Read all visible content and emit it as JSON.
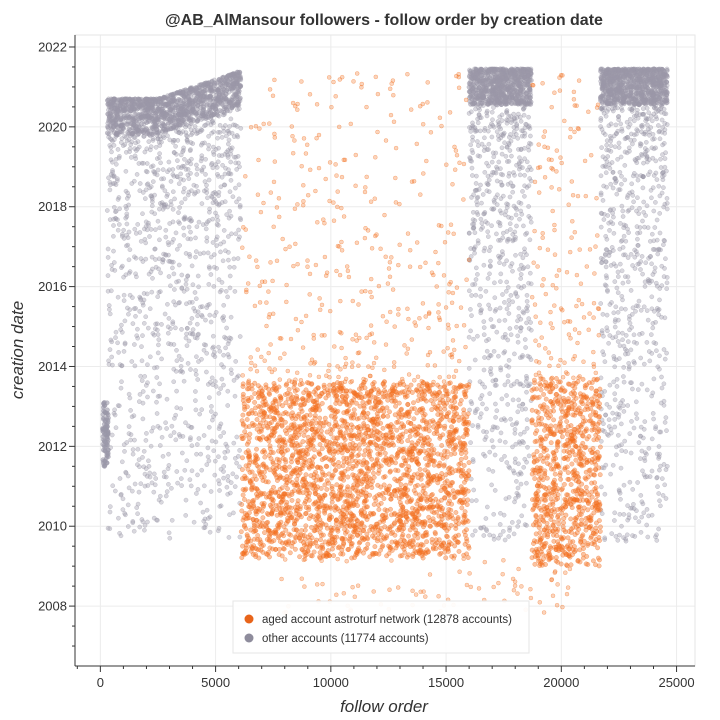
{
  "chart_data": {
    "type": "scatter",
    "title": "@AB_AlMansour followers - follow order by creation date",
    "xlabel": "follow order",
    "ylabel": "creation date",
    "xlim": [
      -1100,
      25800
    ],
    "ylim": [
      2006.5,
      2022.3
    ],
    "x_ticks": [
      0,
      5000,
      10000,
      15000,
      20000,
      25000
    ],
    "x_tick_labels": [
      "0",
      "5000",
      "10000",
      "15000",
      "20000",
      "25000"
    ],
    "y_ticks": [
      2008,
      2010,
      2012,
      2014,
      2016,
      2018,
      2020,
      2022
    ],
    "y_tick_labels": [
      "2008",
      "2010",
      "2012",
      "2014",
      "2016",
      "2018",
      "2020",
      "2022"
    ],
    "grid": true,
    "legend_position": "bottom-center",
    "series": [
      {
        "name": "aged account astroturf network (12878 accounts)",
        "color": "#f37121",
        "count": 12878,
        "clusters": [
          {
            "x_range": [
              6100,
              16000
            ],
            "y_range": [
              2009.2,
              2013.6
            ]
          },
          {
            "x_range": [
              18700,
              21700
            ],
            "y_range": [
              2009.0,
              2013.7
            ]
          }
        ]
      },
      {
        "name": "other accounts (11774 accounts)",
        "color": "#9a98a8",
        "count": 11774,
        "clusters": [
          {
            "x_range": [
              300,
              6100
            ],
            "y_range": [
              2009.6,
              2021.4
            ]
          },
          {
            "x_range": [
              16000,
              18700
            ],
            "y_range": [
              2009.5,
              2021.5
            ]
          },
          {
            "x_range": [
              21700,
              24600
            ],
            "y_range": [
              2009.5,
              2021.5
            ]
          }
        ]
      }
    ]
  }
}
